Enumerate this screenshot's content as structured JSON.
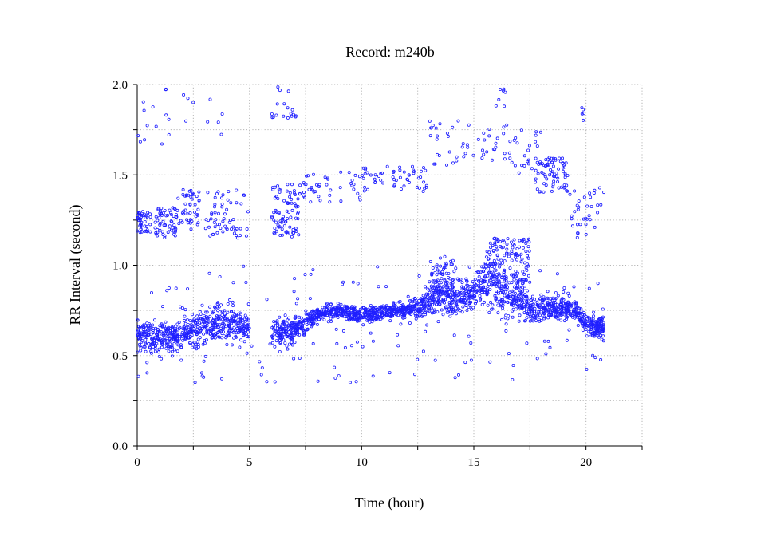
{
  "chart_data": {
    "type": "scatter",
    "title": "Record:  m240b",
    "xlabel": "Time (hour)",
    "ylabel": "RR Interval (second)",
    "xlim": [
      0,
      22.5
    ],
    "ylim": [
      0,
      2.0
    ],
    "x_ticks": [
      0,
      5,
      10,
      15,
      20
    ],
    "x_tick_labels": [
      "0",
      "5",
      "10",
      "15",
      "20"
    ],
    "x_minor_ticks": [
      2.5,
      7.5,
      12.5,
      17.5,
      22.5
    ],
    "y_ticks": [
      0,
      0.5,
      1.0,
      1.5,
      2.0
    ],
    "y_tick_labels": [
      "0.0",
      "0.5",
      "1.0",
      "1.5",
      "2.0"
    ],
    "y_minor_ticks": [
      0.25,
      0.75,
      1.25,
      1.75
    ],
    "grid": true,
    "marker_color": "#1f1fff",
    "marker": "open-circle",
    "series": [
      {
        "name": "",
        "trend": {
          "x": [
            0,
            0.5,
            1,
            1.5,
            2,
            2.5,
            3,
            3.5,
            4,
            4.5,
            5,
            5.5,
            6,
            6.5,
            7,
            7.5,
            8,
            8.5,
            9,
            9.5,
            10,
            10.5,
            11,
            11.5,
            12,
            12.5,
            13,
            13.5,
            14,
            14.5,
            15,
            15.5,
            16,
            16.5,
            17,
            17.5,
            18,
            18.5,
            19,
            19.5,
            20,
            20.5,
            20.8
          ],
          "y": [
            0.62,
            0.6,
            0.6,
            0.6,
            0.62,
            0.64,
            0.66,
            0.68,
            0.68,
            0.67,
            0.64,
            null,
            0.63,
            0.63,
            0.64,
            0.68,
            0.72,
            0.74,
            0.74,
            0.73,
            0.72,
            0.73,
            0.74,
            0.75,
            0.76,
            0.76,
            0.8,
            0.82,
            0.82,
            0.83,
            0.84,
            0.92,
            0.9,
            0.85,
            0.84,
            0.76,
            0.76,
            0.76,
            0.76,
            0.75,
            0.67,
            0.66,
            0.65
          ],
          "spread": [
            0.06,
            0.07,
            0.07,
            0.06,
            0.06,
            0.06,
            0.07,
            0.07,
            0.07,
            0.06,
            0.05,
            null,
            0.06,
            0.06,
            0.05,
            0.04,
            0.03,
            0.03,
            0.03,
            0.03,
            0.03,
            0.03,
            0.03,
            0.03,
            0.03,
            0.04,
            0.06,
            0.07,
            0.07,
            0.06,
            0.06,
            0.1,
            0.1,
            0.09,
            0.09,
            0.05,
            0.05,
            0.05,
            0.05,
            0.04,
            0.04,
            0.05,
            0.06
          ]
        },
        "clusters": [
          {
            "x": [
              0.0,
              0.6
            ],
            "y": [
              1.18,
              1.3
            ],
            "count": 45
          },
          {
            "x": [
              0.8,
              1.8
            ],
            "y": [
              1.15,
              1.32
            ],
            "count": 60
          },
          {
            "x": [
              1.8,
              2.8
            ],
            "y": [
              1.2,
              1.42
            ],
            "count": 45
          },
          {
            "x": [
              3.0,
              5.0
            ],
            "y": [
              1.15,
              1.42
            ],
            "count": 60
          },
          {
            "x": [
              6.0,
              7.2
            ],
            "y": [
              1.15,
              1.45
            ],
            "count": 80
          },
          {
            "x": [
              7.2,
              10.0
            ],
            "y": [
              1.35,
              1.52
            ],
            "count": 45
          },
          {
            "x": [
              10.0,
              13.0
            ],
            "y": [
              1.4,
              1.55
            ],
            "count": 55
          },
          {
            "x": [
              13.0,
              16.5
            ],
            "y": [
              1.55,
              1.8
            ],
            "count": 50
          },
          {
            "x": [
              16.5,
              18.0
            ],
            "y": [
              1.45,
              1.75
            ],
            "count": 30
          },
          {
            "x": [
              17.8,
              19.2
            ],
            "y": [
              1.4,
              1.6
            ],
            "count": 70
          },
          {
            "x": [
              19.2,
              20.8
            ],
            "y": [
              1.15,
              1.45
            ],
            "count": 35
          },
          {
            "x": [
              15.5,
              17.5
            ],
            "y": [
              0.9,
              1.15
            ],
            "count": 120
          },
          {
            "x": [
              13.0,
              14.2
            ],
            "y": [
              0.85,
              1.05
            ],
            "count": 50
          },
          {
            "x": [
              0.0,
              2.0
            ],
            "y": [
              1.6,
              2.0
            ],
            "count": 14
          },
          {
            "x": [
              2.0,
              4.0
            ],
            "y": [
              1.7,
              2.0
            ],
            "count": 9
          },
          {
            "x": [
              6.0,
              7.2
            ],
            "y": [
              1.8,
              2.0
            ],
            "count": 18
          },
          {
            "x": [
              15.8,
              16.4
            ],
            "y": [
              1.75,
              2.0
            ],
            "count": 7
          },
          {
            "x": [
              19.8,
              20.0
            ],
            "y": [
              1.75,
              1.88
            ],
            "count": 5
          },
          {
            "x": [
              0.0,
              20.8
            ],
            "y": [
              0.35,
              1.0
            ],
            "count": 160
          }
        ]
      }
    ]
  }
}
